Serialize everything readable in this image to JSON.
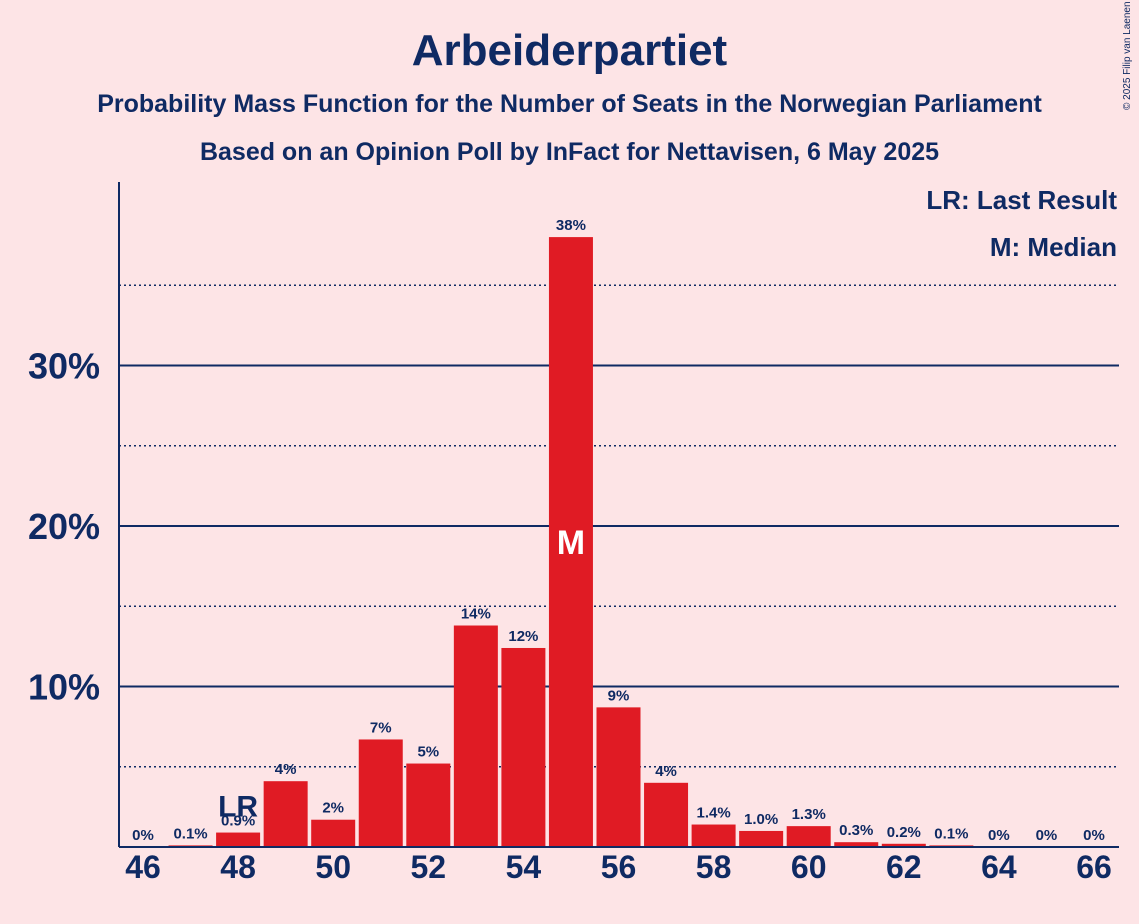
{
  "title": "Arbeiderpartiet",
  "subtitle1": "Probability Mass Function for the Number of Seats in the Norwegian Parliament",
  "subtitle2": "Based on an Opinion Poll by InFact for Nettavisen, 6 May 2025",
  "copyright": "© 2025 Filip van Laenen",
  "legend": {
    "lr": "LR: Last Result",
    "median": "M: Median"
  },
  "colors": {
    "bar": "#e01b24",
    "text": "#0f2a63",
    "background": "#fde4e6"
  },
  "chart_data": {
    "type": "bar",
    "x": [
      46,
      47,
      48,
      49,
      50,
      51,
      52,
      53,
      54,
      55,
      56,
      57,
      58,
      59,
      60,
      61,
      62,
      63,
      64,
      65,
      66
    ],
    "values": [
      0,
      0.1,
      0.9,
      4.1,
      1.7,
      6.7,
      5.2,
      13.8,
      12.4,
      38.0,
      8.7,
      4.0,
      1.4,
      1.0,
      1.3,
      0.3,
      0.2,
      0.1,
      0,
      0,
      0
    ],
    "labels": [
      "0%",
      "0.1%",
      "0.9%",
      "4%",
      "2%",
      "7%",
      "5%",
      "14%",
      "12%",
      "38%",
      "9%",
      "4%",
      "1.4%",
      "1.0%",
      "1.3%",
      "0.3%",
      "0.2%",
      "0.1%",
      "0%",
      "0%",
      "0%"
    ],
    "xticks": [
      46,
      48,
      50,
      52,
      54,
      56,
      58,
      60,
      62,
      64,
      66
    ],
    "yticks": [
      {
        "value": 10,
        "label": "10%"
      },
      {
        "value": 20,
        "label": "20%"
      },
      {
        "value": 30,
        "label": "30%"
      }
    ],
    "minor_gridlines": [
      5,
      15,
      25,
      35
    ],
    "ylim": [
      0,
      41
    ],
    "last_result": {
      "x": 48,
      "label": "LR"
    },
    "median": {
      "x": 55,
      "label": "M"
    }
  }
}
